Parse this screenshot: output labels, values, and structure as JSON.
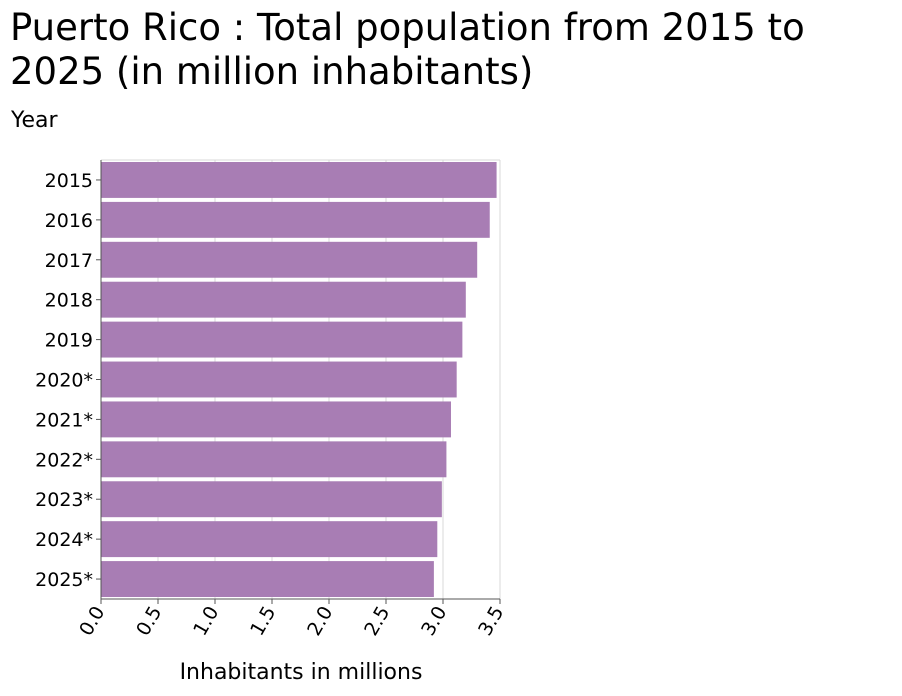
{
  "chart_data": {
    "type": "bar",
    "orientation": "horizontal",
    "title": "Puerto Rico : Total population from 2015 to 2025 (in million inhabitants)",
    "ylabel": "Year",
    "xlabel": "Inhabitants in millions",
    "categories": [
      "2015",
      "2016",
      "2017",
      "2018",
      "2019",
      "2020*",
      "2021*",
      "2022*",
      "2023*",
      "2024*",
      "2025*"
    ],
    "values": [
      3.47,
      3.41,
      3.3,
      3.2,
      3.17,
      3.12,
      3.07,
      3.03,
      2.99,
      2.95,
      2.92
    ],
    "xlim": [
      0,
      3.5
    ],
    "xticks": [
      "0.0",
      "0.5",
      "1.0",
      "1.5",
      "2.0",
      "2.5",
      "3.0",
      "3.5"
    ],
    "grid": "vertical",
    "bar_color": "#a87db4"
  }
}
